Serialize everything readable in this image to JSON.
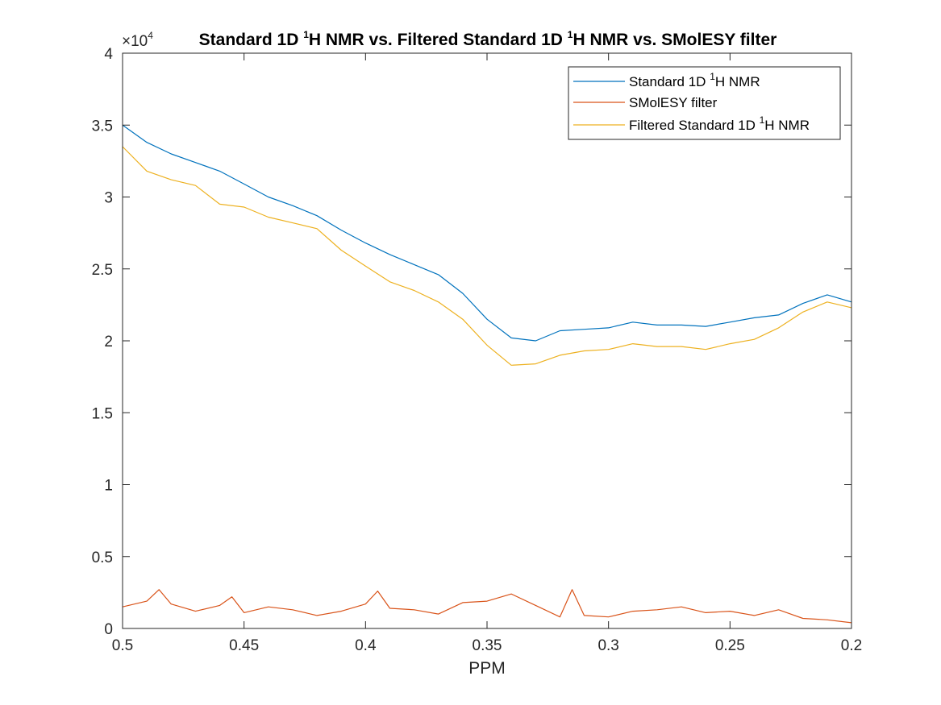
{
  "chart_data": {
    "type": "line",
    "title": "Standard 1D ¹H NMR vs. Filtered Standard 1D ¹H NMR vs. SMolESY filter",
    "title_parts": {
      "a": "Standard 1D ",
      "b": "H NMR vs. Filtered Standard 1D ",
      "c": "H NMR vs. SMolESY filter",
      "sup": "1"
    },
    "xlabel": "PPM",
    "ylabel": "",
    "x_reversed": true,
    "xlim": [
      0.5,
      0.2
    ],
    "ylim": [
      0,
      40000
    ],
    "y_exponent_label": "×10",
    "y_exponent_power": "4",
    "xticks": [
      {
        "value": 0.5,
        "label": "0.5"
      },
      {
        "value": 0.45,
        "label": "0.45"
      },
      {
        "value": 0.4,
        "label": "0.4"
      },
      {
        "value": 0.35,
        "label": "0.35"
      },
      {
        "value": 0.3,
        "label": "0.3"
      },
      {
        "value": 0.25,
        "label": "0.25"
      },
      {
        "value": 0.2,
        "label": "0.2"
      }
    ],
    "yticks": [
      {
        "value": 0,
        "label": "0"
      },
      {
        "value": 5000,
        "label": "0.5"
      },
      {
        "value": 10000,
        "label": "1"
      },
      {
        "value": 15000,
        "label": "1.5"
      },
      {
        "value": 20000,
        "label": "2"
      },
      {
        "value": 25000,
        "label": "2.5"
      },
      {
        "value": 30000,
        "label": "3"
      },
      {
        "value": 35000,
        "label": "3.5"
      },
      {
        "value": 40000,
        "label": "4"
      }
    ],
    "grid": false,
    "legend_position": "top-right",
    "series": [
      {
        "name": "Standard 1D ¹H NMR",
        "legend_parts": {
          "a": "Standard 1D ",
          "sup": "1",
          "b": "H NMR"
        },
        "color": "#0072BD",
        "x": [
          0.5,
          0.49,
          0.48,
          0.47,
          0.46,
          0.45,
          0.44,
          0.43,
          0.42,
          0.41,
          0.4,
          0.39,
          0.38,
          0.37,
          0.36,
          0.35,
          0.34,
          0.33,
          0.32,
          0.31,
          0.3,
          0.29,
          0.28,
          0.27,
          0.26,
          0.25,
          0.24,
          0.23,
          0.22,
          0.21,
          0.2
        ],
        "y": [
          35000,
          33800,
          33000,
          32400,
          31800,
          30900,
          30000,
          29400,
          28700,
          27700,
          26800,
          26000,
          25300,
          24600,
          23300,
          21500,
          20200,
          20000,
          20700,
          20800,
          20900,
          21300,
          21100,
          21100,
          21000,
          21300,
          21600,
          21800,
          22600,
          23200,
          22700
        ]
      },
      {
        "name": "SMolESY filter",
        "legend_parts": {
          "a": "SMolESY filter",
          "sup": "",
          "b": ""
        },
        "color": "#D95319",
        "x": [
          0.5,
          0.49,
          0.485,
          0.48,
          0.47,
          0.46,
          0.455,
          0.45,
          0.44,
          0.43,
          0.42,
          0.41,
          0.4,
          0.395,
          0.39,
          0.38,
          0.37,
          0.36,
          0.35,
          0.34,
          0.33,
          0.32,
          0.315,
          0.31,
          0.3,
          0.29,
          0.28,
          0.27,
          0.26,
          0.25,
          0.24,
          0.23,
          0.22,
          0.21,
          0.2
        ],
        "y": [
          1500,
          1900,
          2700,
          1700,
          1200,
          1600,
          2200,
          1100,
          1500,
          1300,
          900,
          1200,
          1700,
          2600,
          1400,
          1300,
          1000,
          1800,
          1900,
          2400,
          1600,
          800,
          2700,
          900,
          800,
          1200,
          1300,
          1500,
          1100,
          1200,
          900,
          1300,
          700,
          600,
          400
        ]
      },
      {
        "name": "Filtered Standard 1D ¹H NMR",
        "legend_parts": {
          "a": "Filtered Standard 1D ",
          "sup": "1",
          "b": "H NMR"
        },
        "color": "#EDB120",
        "x": [
          0.5,
          0.49,
          0.48,
          0.47,
          0.46,
          0.45,
          0.44,
          0.43,
          0.42,
          0.41,
          0.4,
          0.39,
          0.38,
          0.37,
          0.36,
          0.35,
          0.34,
          0.33,
          0.32,
          0.31,
          0.3,
          0.29,
          0.28,
          0.27,
          0.26,
          0.25,
          0.24,
          0.23,
          0.22,
          0.21,
          0.2
        ],
        "y": [
          33500,
          31800,
          31200,
          30800,
          29500,
          29300,
          28600,
          28200,
          27800,
          26300,
          25200,
          24100,
          23500,
          22700,
          21500,
          19700,
          18300,
          18400,
          19000,
          19300,
          19400,
          19800,
          19600,
          19600,
          19400,
          19800,
          20100,
          20900,
          22000,
          22700,
          22300
        ]
      }
    ]
  }
}
